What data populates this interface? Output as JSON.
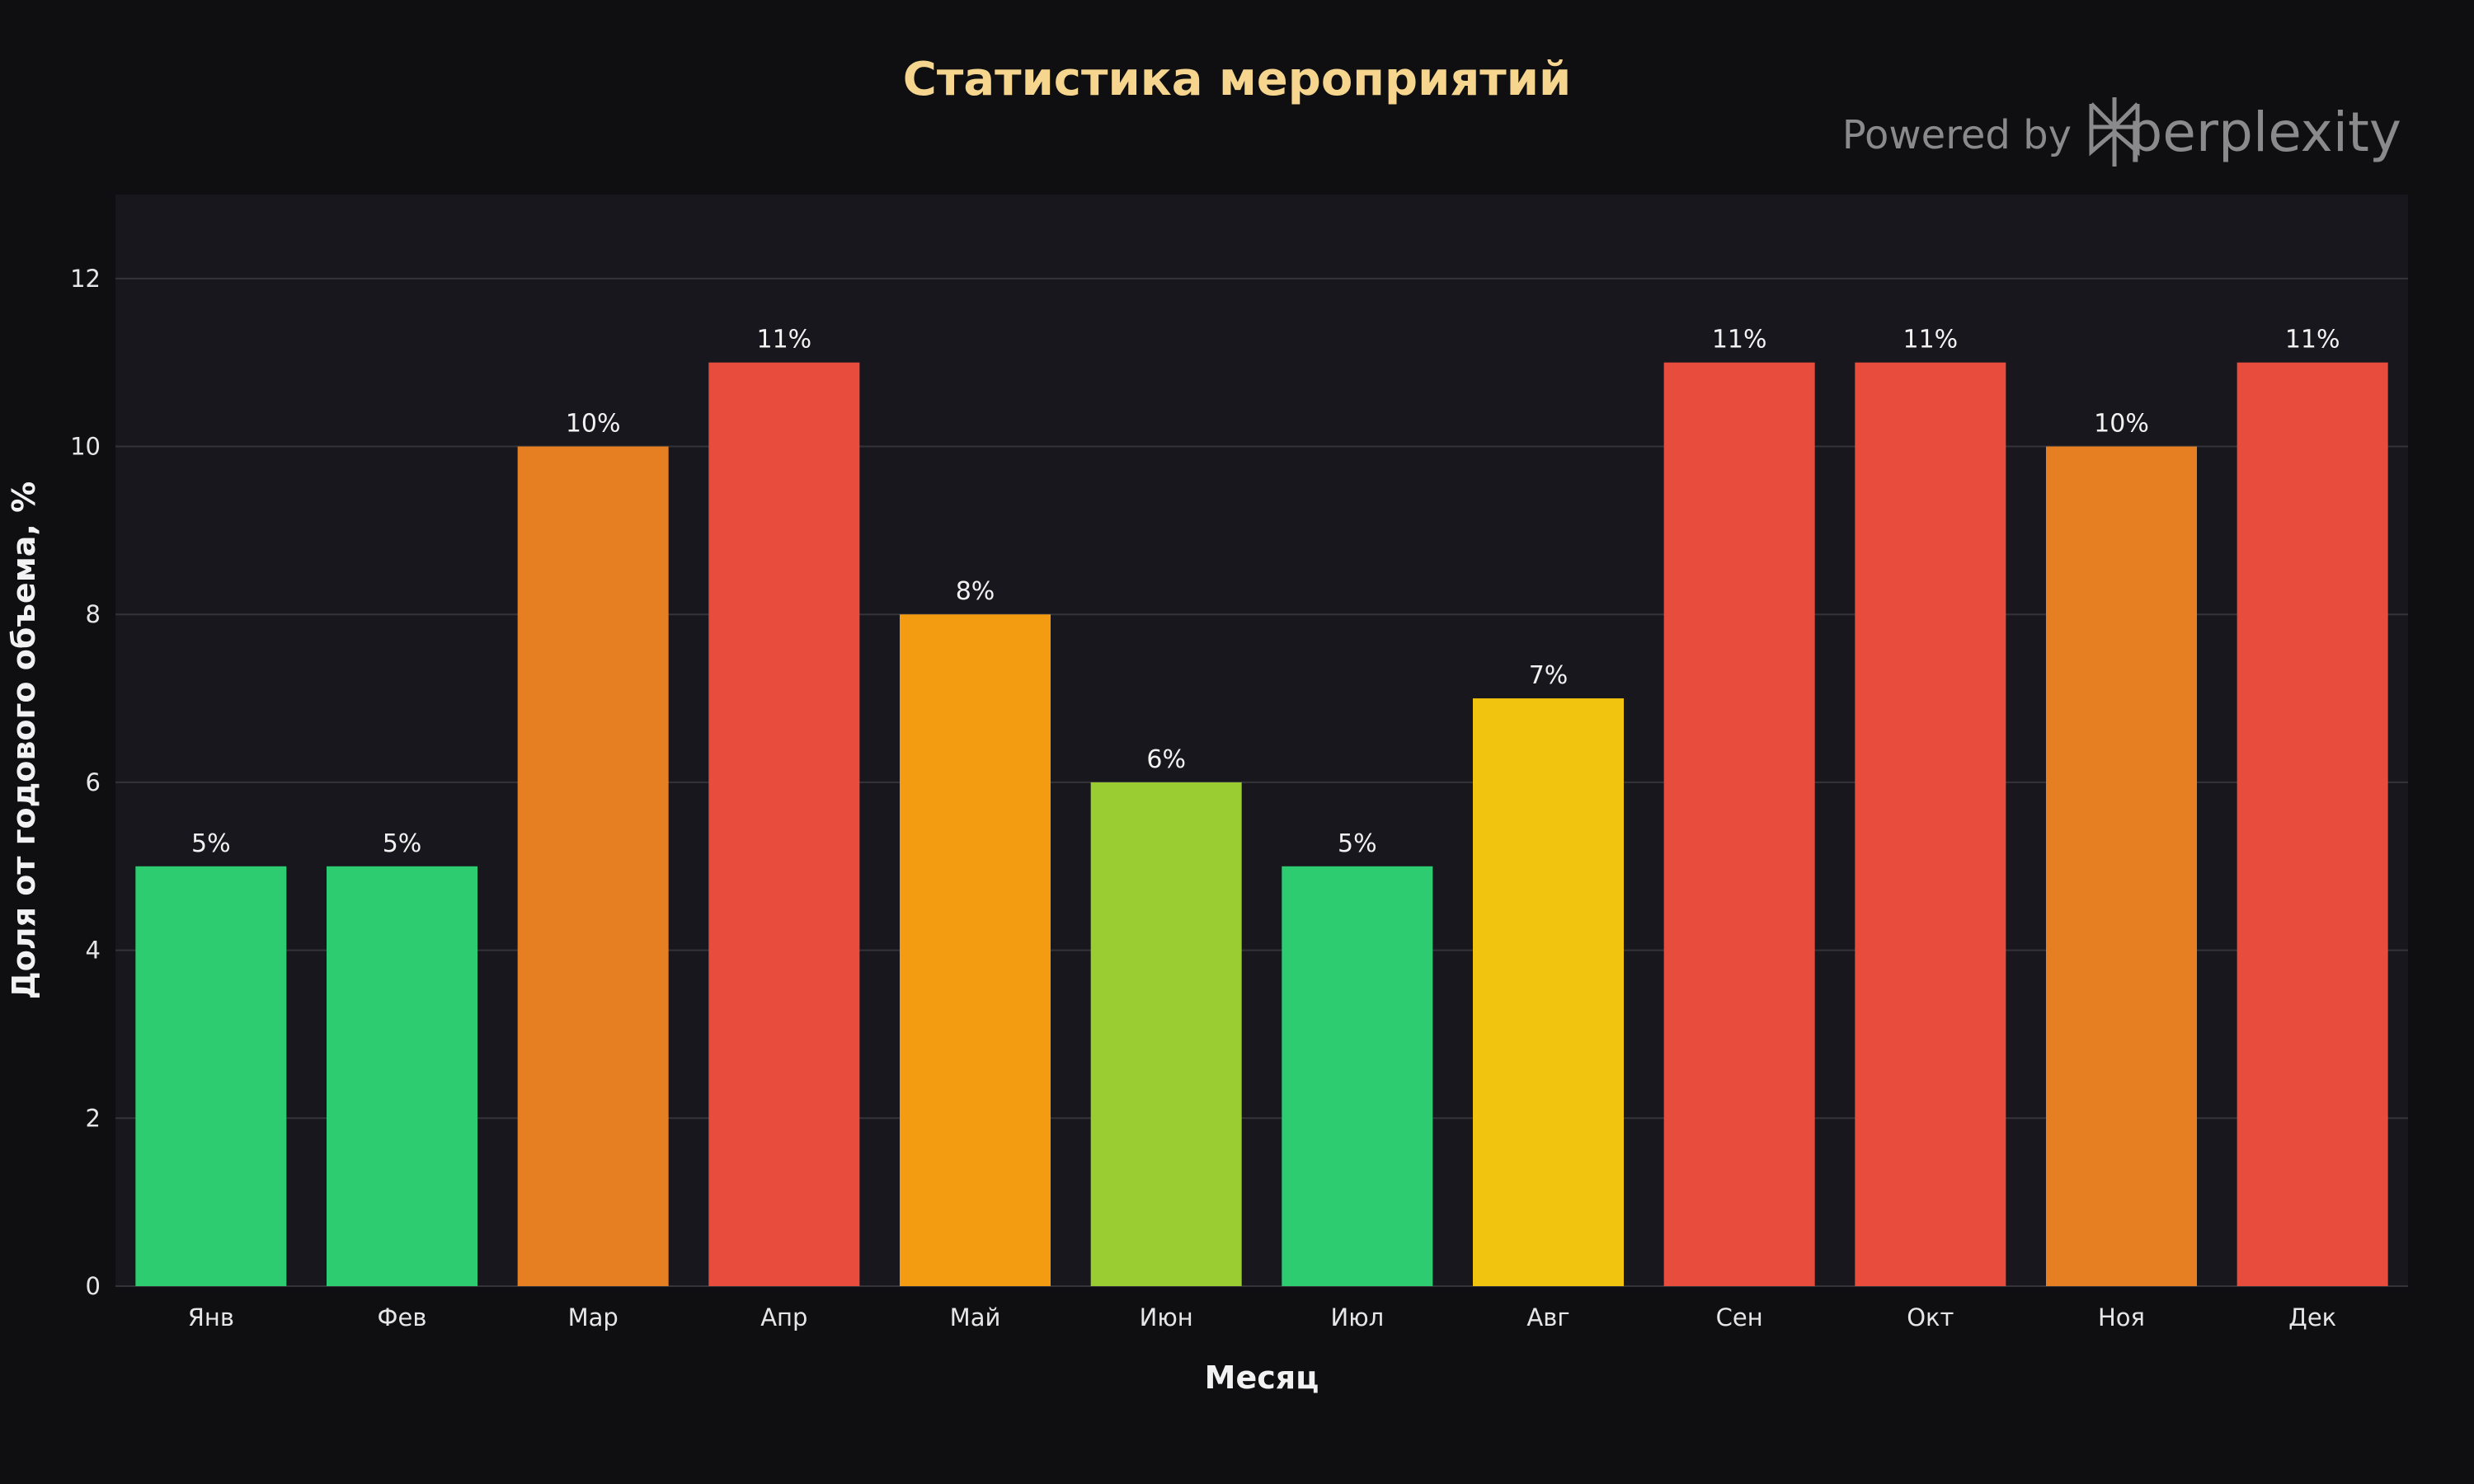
{
  "chart_data": {
    "type": "bar",
    "title": "Статистика мероприятий",
    "xlabel": "Месяц",
    "ylabel": "Доля от годового объема, %",
    "categories": [
      "Янв",
      "Фев",
      "Мар",
      "Апр",
      "Май",
      "Июн",
      "Июл",
      "Авг",
      "Сен",
      "Окт",
      "Ноя",
      "Дек"
    ],
    "values": [
      5,
      5,
      10,
      11,
      8,
      6,
      5,
      7,
      11,
      11,
      10,
      11
    ],
    "data_labels": [
      "5%",
      "5%",
      "10%",
      "11%",
      "8%",
      "6%",
      "5%",
      "7%",
      "11%",
      "11%",
      "10%",
      "11%"
    ],
    "bar_colors": [
      "#2ecc71",
      "#2ecc71",
      "#e67e22",
      "#e74c3c",
      "#f39c12",
      "#9acd32",
      "#2ecc71",
      "#f1c40f",
      "#e74c3c",
      "#e74c3c",
      "#e67e22",
      "#e74c3c"
    ],
    "ylim": [
      0,
      13
    ],
    "yticks": [
      0,
      2,
      4,
      6,
      8,
      10,
      12
    ],
    "grid": true,
    "legend": "none"
  },
  "watermark": {
    "prefix": "Powered by",
    "brand": "perplexity",
    "icon": "perplexity-logo-icon"
  },
  "colors": {
    "page_background": "#0f0f11",
    "plot_background": "#18171d",
    "grid": "#34333a",
    "title": "#f6d58e",
    "text": "#e6e6e6",
    "watermark": "#8a8a8c"
  }
}
